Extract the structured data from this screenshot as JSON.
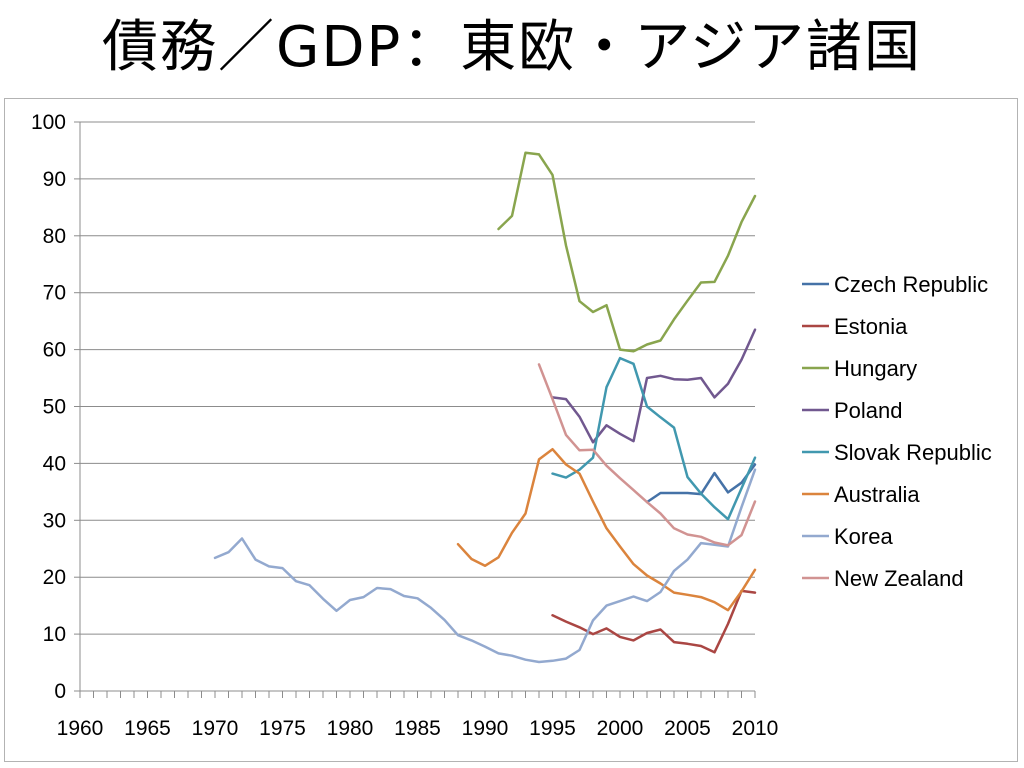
{
  "page": {
    "title": "債務／GDP：東欧・アジア諸国"
  },
  "chart_data": {
    "type": "line",
    "title": "",
    "xlabel": "",
    "ylabel": "",
    "xlim": [
      1960,
      2010
    ],
    "ylim": [
      0,
      100
    ],
    "y_ticks": [
      0,
      10,
      20,
      30,
      40,
      50,
      60,
      70,
      80,
      90,
      100
    ],
    "x_ticks": [
      1960,
      1965,
      1970,
      1975,
      1980,
      1985,
      1990,
      1995,
      2000,
      2005,
      2010
    ],
    "grid": "horizontal",
    "legend_position": "right",
    "series": [
      {
        "name": "Czech Republic",
        "color": "#4572a7",
        "points": [
          [
            2002,
            33.2
          ],
          [
            2003,
            34.8
          ],
          [
            2004,
            34.8
          ],
          [
            2005,
            34.8
          ],
          [
            2006,
            34.6
          ],
          [
            2007,
            38.3
          ],
          [
            2008,
            34.9
          ],
          [
            2009,
            36.6
          ],
          [
            2010,
            39.8
          ]
        ]
      },
      {
        "name": "Estonia",
        "color": "#aa4643",
        "points": [
          [
            1995,
            13.3
          ],
          [
            1996,
            12.2
          ],
          [
            1997,
            11.2
          ],
          [
            1998,
            10.0
          ],
          [
            1999,
            11.0
          ],
          [
            2000,
            9.5
          ],
          [
            2001,
            8.9
          ],
          [
            2002,
            10.2
          ],
          [
            2003,
            10.8
          ],
          [
            2004,
            8.6
          ],
          [
            2005,
            8.3
          ],
          [
            2006,
            7.9
          ],
          [
            2007,
            6.8
          ],
          [
            2008,
            11.8
          ],
          [
            2009,
            17.6
          ],
          [
            2010,
            17.3
          ]
        ]
      },
      {
        "name": "Hungary",
        "color": "#89a54e",
        "points": [
          [
            1991,
            81.2
          ],
          [
            1992,
            83.5
          ],
          [
            1993,
            94.6
          ],
          [
            1994,
            94.3
          ],
          [
            1995,
            90.7
          ],
          [
            1996,
            78.3
          ],
          [
            1997,
            68.5
          ],
          [
            1998,
            66.6
          ],
          [
            1999,
            67.8
          ],
          [
            2000,
            60.0
          ],
          [
            2001,
            59.7
          ],
          [
            2002,
            60.9
          ],
          [
            2003,
            61.6
          ],
          [
            2004,
            65.3
          ],
          [
            2005,
            68.6
          ],
          [
            2006,
            71.8
          ],
          [
            2007,
            71.9
          ],
          [
            2008,
            76.5
          ],
          [
            2009,
            82.4
          ],
          [
            2010,
            87.0
          ]
        ]
      },
      {
        "name": "Poland",
        "color": "#71588f",
        "points": [
          [
            1995,
            51.6
          ],
          [
            1996,
            51.3
          ],
          [
            1997,
            48.2
          ],
          [
            1998,
            43.7
          ],
          [
            1999,
            46.7
          ],
          [
            2000,
            45.2
          ],
          [
            2001,
            43.9
          ],
          [
            2002,
            55.0
          ],
          [
            2003,
            55.4
          ],
          [
            2004,
            54.8
          ],
          [
            2005,
            54.7
          ],
          [
            2006,
            55.0
          ],
          [
            2007,
            51.6
          ],
          [
            2008,
            54.0
          ],
          [
            2009,
            58.2
          ],
          [
            2010,
            63.5
          ]
        ]
      },
      {
        "name": "Slovak Republic",
        "color": "#4198af",
        "points": [
          [
            1995,
            38.2
          ],
          [
            1996,
            37.5
          ],
          [
            1997,
            38.9
          ],
          [
            1998,
            41.0
          ],
          [
            1999,
            53.4
          ],
          [
            2000,
            58.5
          ],
          [
            2001,
            57.5
          ],
          [
            2002,
            50.0
          ],
          [
            2003,
            48.1
          ],
          [
            2004,
            46.3
          ],
          [
            2005,
            37.6
          ],
          [
            2006,
            34.7
          ],
          [
            2007,
            32.3
          ],
          [
            2008,
            30.2
          ],
          [
            2009,
            35.6
          ],
          [
            2010,
            41.0
          ]
        ]
      },
      {
        "name": "Australia",
        "color": "#db843d",
        "points": [
          [
            1988,
            25.8
          ],
          [
            1989,
            23.2
          ],
          [
            1990,
            22.0
          ],
          [
            1991,
            23.5
          ],
          [
            1992,
            27.8
          ],
          [
            1993,
            31.2
          ],
          [
            1994,
            40.7
          ],
          [
            1995,
            42.5
          ],
          [
            1996,
            39.8
          ],
          [
            1997,
            38.2
          ],
          [
            1998,
            33.3
          ],
          [
            1999,
            28.6
          ],
          [
            2000,
            25.4
          ],
          [
            2001,
            22.3
          ],
          [
            2002,
            20.3
          ],
          [
            2003,
            18.9
          ],
          [
            2004,
            17.3
          ],
          [
            2005,
            16.9
          ],
          [
            2006,
            16.5
          ],
          [
            2007,
            15.6
          ],
          [
            2008,
            14.2
          ],
          [
            2009,
            17.5
          ],
          [
            2010,
            21.3
          ]
        ]
      },
      {
        "name": "Korea",
        "color": "#93a9cf",
        "points": [
          [
            1970,
            23.4
          ],
          [
            1971,
            24.4
          ],
          [
            1972,
            26.8
          ],
          [
            1973,
            23.1
          ],
          [
            1974,
            21.9
          ],
          [
            1975,
            21.6
          ],
          [
            1976,
            19.3
          ],
          [
            1977,
            18.6
          ],
          [
            1978,
            16.2
          ],
          [
            1979,
            14.1
          ],
          [
            1980,
            16.0
          ],
          [
            1981,
            16.5
          ],
          [
            1982,
            18.1
          ],
          [
            1983,
            17.9
          ],
          [
            1984,
            16.7
          ],
          [
            1985,
            16.3
          ],
          [
            1986,
            14.6
          ],
          [
            1987,
            12.5
          ],
          [
            1988,
            9.8
          ],
          [
            1989,
            8.9
          ],
          [
            1990,
            7.8
          ],
          [
            1991,
            6.6
          ],
          [
            1992,
            6.2
          ],
          [
            1993,
            5.5
          ],
          [
            1994,
            5.1
          ],
          [
            1995,
            5.3
          ],
          [
            1996,
            5.7
          ],
          [
            1997,
            7.2
          ],
          [
            1998,
            12.4
          ],
          [
            1999,
            15.0
          ],
          [
            2000,
            15.8
          ],
          [
            2001,
            16.6
          ],
          [
            2002,
            15.8
          ],
          [
            2003,
            17.4
          ],
          [
            2004,
            21.1
          ],
          [
            2005,
            23.1
          ],
          [
            2006,
            26.0
          ],
          [
            2007,
            25.7
          ],
          [
            2008,
            25.4
          ],
          [
            2009,
            32.3
          ],
          [
            2010,
            38.9
          ]
        ]
      },
      {
        "name": "New Zealand",
        "color": "#d19392",
        "points": [
          [
            1994,
            57.4
          ],
          [
            1995,
            51.3
          ],
          [
            1996,
            45.0
          ],
          [
            1997,
            42.3
          ],
          [
            1998,
            42.4
          ],
          [
            1999,
            39.6
          ],
          [
            2000,
            37.4
          ],
          [
            2001,
            35.3
          ],
          [
            2002,
            33.2
          ],
          [
            2003,
            31.2
          ],
          [
            2004,
            28.6
          ],
          [
            2005,
            27.5
          ],
          [
            2006,
            27.1
          ],
          [
            2007,
            26.1
          ],
          [
            2008,
            25.6
          ],
          [
            2009,
            27.4
          ],
          [
            2010,
            33.3
          ]
        ]
      }
    ]
  }
}
